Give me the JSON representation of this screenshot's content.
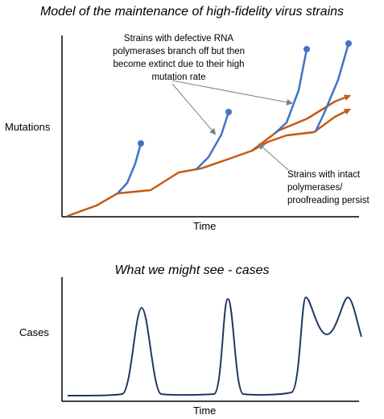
{
  "top_panel": {
    "title": "Model of the maintenance of high-fidelity virus strains",
    "y_label": "Mutations",
    "x_label": "Time",
    "note_defective": {
      "lines": [
        "Strains with defective RNA",
        "polymerases branch off but then",
        "become  extinct due to their high",
        "mutation rate"
      ]
    },
    "note_intact": {
      "lines": [
        "Strains with intact",
        "polymerases/",
        "proofreading persist"
      ]
    },
    "colors": {
      "intact": "#c55a11",
      "defective": "#4472c4",
      "arrow": "#808080",
      "axis": "#000000"
    }
  },
  "bottom_panel": {
    "title": "What we might see - cases",
    "y_label": "Cases",
    "x_label": "Time",
    "colors": {
      "curve": "#203864",
      "axis": "#000000"
    }
  }
}
